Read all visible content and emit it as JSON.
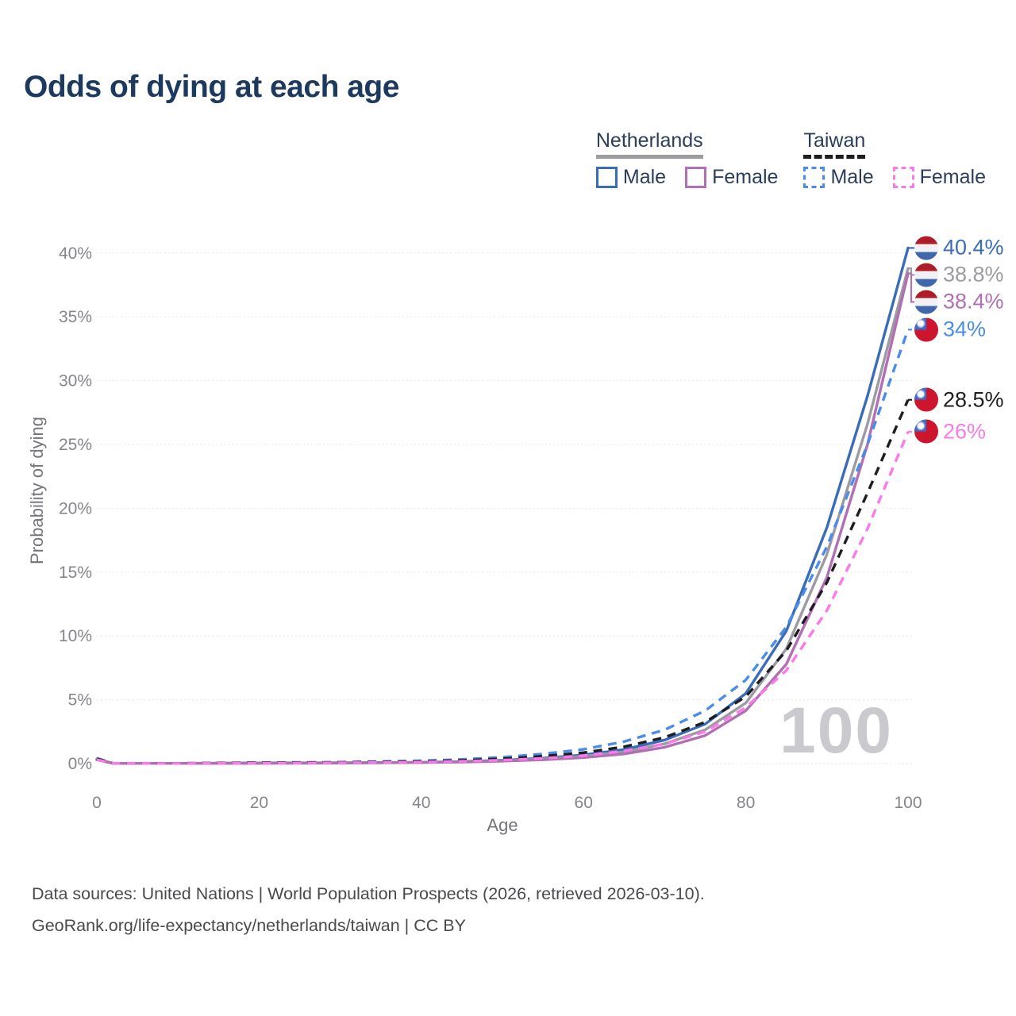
{
  "title": "Odds of dying at each age",
  "watermark": "100",
  "legend": {
    "groups": [
      {
        "name": "Netherlands",
        "line_style": "solid",
        "underline_color": "#9b9ba1",
        "items": [
          {
            "label": "Male",
            "color": "#3a6db8"
          },
          {
            "label": "Female",
            "color": "#b16fb4"
          }
        ]
      },
      {
        "name": "Taiwan",
        "line_style": "dashed",
        "underline_color": "#1e1e22",
        "items": [
          {
            "label": "Male",
            "color": "#4b8ceb"
          },
          {
            "label": "Female",
            "color": "#f97ae8"
          }
        ]
      }
    ]
  },
  "footer": {
    "line1": "Data sources: United Nations | World Population Prospects (2026, retrieved 2026-03-10).",
    "line2": "GeoRank.org/life-expectancy/netherlands/taiwan | CC BY"
  },
  "chart_data": {
    "type": "line",
    "title": "Odds of dying at each age",
    "xlabel": "Age",
    "ylabel": "Probability of dying",
    "xlim": [
      0,
      100
    ],
    "ylim": [
      0,
      40.5
    ],
    "xticks": [
      0,
      20,
      40,
      60,
      80,
      100
    ],
    "yticks": [
      0,
      5,
      10,
      15,
      20,
      25,
      30,
      35,
      40
    ],
    "ytick_labels": [
      "0%",
      "5%",
      "10%",
      "15%",
      "20%",
      "25%",
      "30%",
      "35%",
      "40%"
    ],
    "grid": true,
    "legend_position": "top-right",
    "series": [
      {
        "name": "Netherlands Male",
        "country": "Netherlands",
        "sex": "Male",
        "color": "#3a6db8",
        "dash": "solid",
        "flag": "netherlands",
        "end_value": 40.4,
        "end_label": "40.4%",
        "points": [
          [
            0,
            0.35
          ],
          [
            2,
            0.02
          ],
          [
            10,
            0.01
          ],
          [
            20,
            0.05
          ],
          [
            30,
            0.06
          ],
          [
            40,
            0.1
          ],
          [
            45,
            0.16
          ],
          [
            50,
            0.26
          ],
          [
            55,
            0.42
          ],
          [
            60,
            0.68
          ],
          [
            65,
            1.1
          ],
          [
            70,
            1.85
          ],
          [
            75,
            3.1
          ],
          [
            80,
            5.5
          ],
          [
            85,
            10.4
          ],
          [
            90,
            18.5
          ],
          [
            95,
            28.8
          ],
          [
            100,
            40.4
          ]
        ]
      },
      {
        "name": "Netherlands",
        "country": "Netherlands",
        "sex": "Both",
        "color": "#9b9ba1",
        "dash": "solid",
        "flag": "netherlands",
        "end_value": 38.8,
        "end_label": "38.8%",
        "points": [
          [
            0,
            0.32
          ],
          [
            2,
            0.02
          ],
          [
            10,
            0.01
          ],
          [
            20,
            0.04
          ],
          [
            30,
            0.05
          ],
          [
            40,
            0.09
          ],
          [
            45,
            0.14
          ],
          [
            50,
            0.22
          ],
          [
            55,
            0.36
          ],
          [
            60,
            0.57
          ],
          [
            65,
            0.92
          ],
          [
            70,
            1.55
          ],
          [
            75,
            2.65
          ],
          [
            80,
            4.75
          ],
          [
            85,
            9.0
          ],
          [
            90,
            16.4
          ],
          [
            95,
            26.6
          ],
          [
            100,
            38.8
          ]
        ]
      },
      {
        "name": "Netherlands Female",
        "country": "Netherlands",
        "sex": "Female",
        "color": "#b16fb4",
        "dash": "solid",
        "flag": "netherlands",
        "end_value": 38.4,
        "end_label": "38.4%",
        "points": [
          [
            0,
            0.3
          ],
          [
            2,
            0.02
          ],
          [
            10,
            0.01
          ],
          [
            20,
            0.02
          ],
          [
            30,
            0.04
          ],
          [
            40,
            0.08
          ],
          [
            45,
            0.12
          ],
          [
            50,
            0.19
          ],
          [
            55,
            0.3
          ],
          [
            60,
            0.47
          ],
          [
            65,
            0.76
          ],
          [
            70,
            1.28
          ],
          [
            75,
            2.2
          ],
          [
            80,
            4.15
          ],
          [
            85,
            7.8
          ],
          [
            90,
            14.6
          ],
          [
            95,
            25.0
          ],
          [
            100,
            38.4
          ]
        ]
      },
      {
        "name": "Taiwan Male",
        "country": "Taiwan",
        "sex": "Male",
        "color": "#4b8ceb",
        "dash": "dashed",
        "flag": "taiwan",
        "end_value": 34.0,
        "end_label": "34%",
        "points": [
          [
            0,
            0.42
          ],
          [
            2,
            0.03
          ],
          [
            10,
            0.02
          ],
          [
            20,
            0.08
          ],
          [
            30,
            0.11
          ],
          [
            40,
            0.22
          ],
          [
            45,
            0.33
          ],
          [
            50,
            0.5
          ],
          [
            55,
            0.76
          ],
          [
            60,
            1.12
          ],
          [
            65,
            1.72
          ],
          [
            70,
            2.65
          ],
          [
            75,
            4.15
          ],
          [
            80,
            6.55
          ],
          [
            85,
            10.7
          ],
          [
            90,
            17.0
          ],
          [
            95,
            25.0
          ],
          [
            100,
            34.0
          ]
        ]
      },
      {
        "name": "Taiwan",
        "country": "Taiwan",
        "sex": "Both",
        "color": "#1e1e22",
        "dash": "dashed",
        "flag": "taiwan",
        "end_value": 28.5,
        "end_label": "28.5%",
        "points": [
          [
            0,
            0.38
          ],
          [
            2,
            0.02
          ],
          [
            10,
            0.02
          ],
          [
            20,
            0.06
          ],
          [
            30,
            0.09
          ],
          [
            40,
            0.17
          ],
          [
            45,
            0.25
          ],
          [
            50,
            0.38
          ],
          [
            55,
            0.58
          ],
          [
            60,
            0.86
          ],
          [
            65,
            1.32
          ],
          [
            70,
            2.05
          ],
          [
            75,
            3.25
          ],
          [
            80,
            5.25
          ],
          [
            85,
            8.85
          ],
          [
            90,
            14.2
          ],
          [
            95,
            21.2
          ],
          [
            100,
            28.5
          ]
        ]
      },
      {
        "name": "Taiwan Female",
        "country": "Taiwan",
        "sex": "Female",
        "color": "#f97ae8",
        "dash": "dashed",
        "flag": "taiwan",
        "end_value": 26.0,
        "end_label": "26%",
        "points": [
          [
            0,
            0.32
          ],
          [
            2,
            0.02
          ],
          [
            10,
            0.01
          ],
          [
            20,
            0.03
          ],
          [
            30,
            0.06
          ],
          [
            40,
            0.12
          ],
          [
            45,
            0.18
          ],
          [
            50,
            0.27
          ],
          [
            55,
            0.41
          ],
          [
            60,
            0.62
          ],
          [
            65,
            0.98
          ],
          [
            70,
            1.55
          ],
          [
            75,
            2.5
          ],
          [
            80,
            4.4
          ],
          [
            85,
            7.3
          ],
          [
            90,
            12.0
          ],
          [
            95,
            18.4
          ],
          [
            100,
            26.0
          ]
        ]
      }
    ]
  }
}
